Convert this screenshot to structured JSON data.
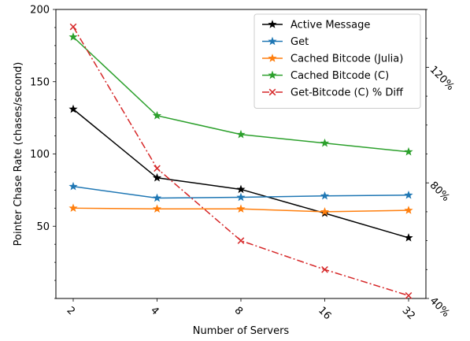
{
  "chart_data": {
    "type": "line",
    "categories": [
      "2",
      "4",
      "8",
      "16",
      "32"
    ],
    "xlabel": "Number of Servers",
    "ylabel": "Pointer Chase Rate (chases/second)",
    "ylim": [
      0,
      200
    ],
    "yticks": [
      50,
      100,
      150,
      200
    ],
    "y2lim": [
      40,
      140
    ],
    "y2ticks": [
      "40%",
      "80%",
      "120%"
    ],
    "y2tick_values": [
      40,
      80,
      120
    ],
    "grid": false,
    "legend_position": "top-right",
    "series": [
      {
        "name": "Active Message",
        "values": [
          131,
          83.5,
          75.5,
          59,
          42
        ],
        "color": "#000000",
        "marker": "star",
        "dash": "solid",
        "axis": "left"
      },
      {
        "name": "Get",
        "values": [
          77.5,
          69.5,
          70,
          71,
          71.5
        ],
        "color": "#1f77b4",
        "marker": "star",
        "dash": "solid",
        "axis": "left"
      },
      {
        "name": "Cached Bitcode (Julia)",
        "values": [
          62.5,
          62,
          62,
          60,
          61
        ],
        "color": "#ff7f0e",
        "marker": "star",
        "dash": "solid",
        "axis": "left"
      },
      {
        "name": "Cached Bitcode (C)",
        "values": [
          181,
          126.5,
          113.5,
          107.5,
          101.5
        ],
        "color": "#2ca02c",
        "marker": "star",
        "dash": "solid",
        "axis": "left"
      },
      {
        "name": "Get-Bitcode (C) % Diff",
        "values": [
          134,
          85,
          60,
          50,
          41
        ],
        "color": "#d62728",
        "marker": "x",
        "dash": "dashdot",
        "axis": "right"
      }
    ]
  }
}
